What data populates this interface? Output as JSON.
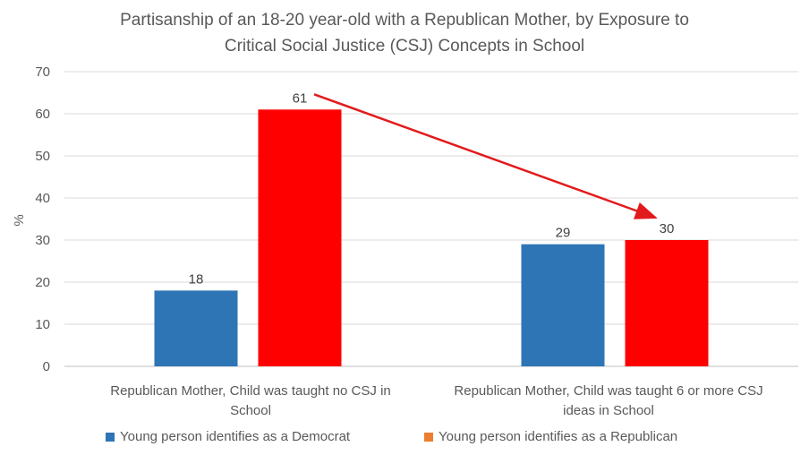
{
  "chart_data": {
    "type": "bar",
    "title": "Partisanship of an 18-20 year-old with a Republican Mother, by Exposure to Critical Social Justice (CSJ) Concepts in School",
    "title_lines": [
      "Partisanship of an 18-20 year-old with a Republican Mother, by Exposure to",
      "Critical Social Justice (CSJ) Concepts in School"
    ],
    "categories": [
      [
        "Republican Mother, Child was taught no CSJ in",
        "School"
      ],
      [
        "Republican Mother, Child was taught 6 or more CSJ",
        "ideas in School"
      ]
    ],
    "series": [
      {
        "name": "Young person identifies as a Democrat",
        "values": [
          18,
          29
        ],
        "color": "#2e75b6",
        "legend_color": "#2e75b6"
      },
      {
        "name": "Young person identifies as a Republican",
        "values": [
          61,
          30
        ],
        "color": "#ff0000",
        "legend_color": "#ed7d31"
      }
    ],
    "ylabel": "%",
    "xlabel": "",
    "ylim": [
      0,
      70
    ],
    "yticks": [
      0,
      10,
      20,
      30,
      40,
      50,
      60,
      70
    ],
    "grid": true,
    "legend_position": "bottom",
    "annotation": {
      "type": "arrow",
      "from": "Young person identifies as a Republican, category 1",
      "to": "Young person identifies as a Republican, category 2",
      "color": "#e31a1c"
    }
  }
}
